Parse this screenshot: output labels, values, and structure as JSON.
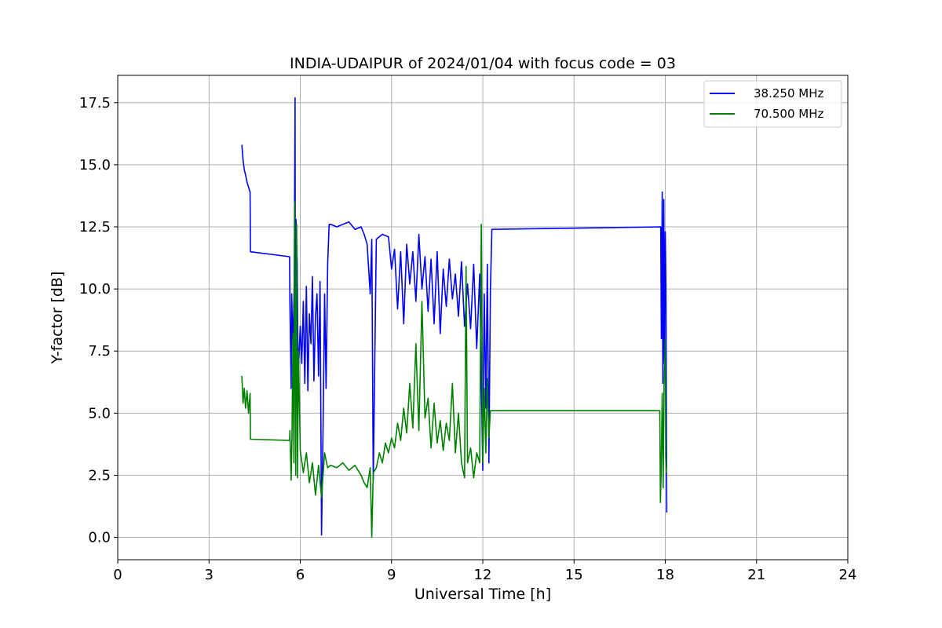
{
  "chart_data": {
    "type": "line",
    "title": "INDIA-UDAIPUR of 2024/01/04 with focus code = 03",
    "xlabel": "Universal Time [h]",
    "ylabel": "Y-factor [dB]",
    "xlim": [
      0,
      24
    ],
    "ylim": [
      -0.9,
      18.6
    ],
    "xticks": [
      0,
      3,
      6,
      9,
      12,
      15,
      18,
      21,
      24
    ],
    "xtick_labels": [
      "0",
      "3",
      "6",
      "9",
      "12",
      "15",
      "18",
      "21",
      "24"
    ],
    "yticks": [
      0,
      2.5,
      5,
      7.5,
      10,
      12.5,
      15,
      17.5
    ],
    "ytick_labels": [
      "0.0",
      "2.5",
      "5.0",
      "7.5",
      "10.0",
      "12.5",
      "15.0",
      "17.5"
    ],
    "grid": true,
    "legend_position": "top-right",
    "series": [
      {
        "name": "38.250 MHz",
        "color": "#0000ff",
        "x": [
          4.08,
          4.12,
          4.16,
          4.2,
          4.25,
          4.3,
          4.35,
          4.36,
          5.65,
          5.66,
          5.7,
          5.72,
          5.76,
          5.8,
          5.83,
          5.84,
          5.86,
          5.9,
          5.93,
          6.0,
          6.05,
          6.1,
          6.15,
          6.2,
          6.25,
          6.3,
          6.35,
          6.4,
          6.45,
          6.5,
          6.55,
          6.6,
          6.65,
          6.7,
          6.75,
          6.8,
          6.85,
          6.9,
          6.95,
          7.0,
          7.2,
          7.4,
          7.6,
          7.8,
          8.0,
          8.1,
          8.2,
          8.3,
          8.35,
          8.4,
          8.5,
          8.7,
          8.9,
          9.0,
          9.1,
          9.2,
          9.3,
          9.4,
          9.5,
          9.6,
          9.7,
          9.8,
          9.9,
          10.0,
          10.1,
          10.2,
          10.3,
          10.4,
          10.5,
          10.6,
          10.7,
          10.8,
          10.9,
          11.0,
          11.1,
          11.2,
          11.3,
          11.4,
          11.5,
          11.6,
          11.7,
          11.8,
          11.9,
          12.0,
          12.05,
          12.1,
          12.15,
          12.2,
          12.25,
          12.3,
          17.85,
          17.87,
          17.9,
          17.92,
          17.95,
          17.97,
          18.0,
          18.02,
          18.05
        ],
        "y": [
          15.8,
          15.2,
          14.8,
          14.6,
          14.3,
          14.1,
          13.9,
          11.5,
          11.3,
          9.5,
          6.0,
          9.8,
          7.5,
          10.2,
          17.7,
          7.0,
          12.8,
          11.0,
          6.5,
          8.5,
          7.0,
          9.5,
          6.2,
          10.1,
          5.9,
          9.0,
          7.8,
          10.5,
          6.3,
          8.9,
          9.8,
          6.5,
          10.3,
          0.1,
          4.5,
          9.8,
          6.0,
          11.0,
          12.6,
          12.6,
          12.5,
          12.6,
          12.7,
          12.4,
          12.5,
          12.2,
          11.8,
          9.8,
          12.0,
          2.3,
          12.0,
          12.2,
          12.1,
          10.8,
          11.6,
          9.2,
          11.5,
          8.6,
          11.8,
          10.2,
          11.5,
          9.5,
          12.2,
          10.0,
          11.3,
          9.1,
          11.2,
          8.6,
          11.5,
          8.2,
          10.8,
          9.3,
          11.2,
          9.6,
          10.6,
          8.9,
          11.1,
          8.5,
          10.2,
          8.4,
          11.0,
          7.6,
          10.6,
          2.7,
          9.8,
          5.2,
          11.0,
          3.0,
          9.9,
          12.4,
          12.5,
          8.0,
          13.9,
          6.2,
          13.6,
          7.0,
          12.3,
          10.2,
          1.0
        ]
      },
      {
        "name": "70.500 MHz",
        "color": "#008000",
        "x": [
          4.08,
          4.12,
          4.16,
          4.2,
          4.25,
          4.3,
          4.35,
          4.36,
          5.65,
          5.66,
          5.7,
          5.73,
          5.76,
          5.79,
          5.82,
          5.85,
          5.88,
          5.91,
          5.94,
          6.0,
          6.1,
          6.2,
          6.3,
          6.4,
          6.5,
          6.6,
          6.7,
          6.8,
          6.9,
          7.0,
          7.2,
          7.4,
          7.6,
          7.8,
          8.0,
          8.1,
          8.2,
          8.3,
          8.35,
          8.4,
          8.5,
          8.6,
          8.7,
          8.8,
          8.9,
          9.0,
          9.1,
          9.2,
          9.3,
          9.4,
          9.5,
          9.6,
          9.7,
          9.8,
          9.9,
          10.0,
          10.1,
          10.2,
          10.3,
          10.4,
          10.5,
          10.6,
          10.7,
          10.8,
          10.9,
          11.0,
          11.1,
          11.2,
          11.3,
          11.4,
          11.45,
          11.5,
          11.6,
          11.7,
          11.8,
          11.9,
          11.95,
          12.0,
          12.05,
          12.1,
          12.15,
          12.2,
          12.25,
          12.3,
          17.82,
          17.84,
          17.86,
          17.9,
          17.93,
          17.96,
          18.0,
          18.02,
          18.05
        ],
        "y": [
          6.5,
          5.4,
          6.0,
          5.2,
          5.9,
          5.0,
          5.8,
          3.95,
          3.9,
          4.3,
          2.3,
          4.1,
          8.2,
          3.0,
          13.5,
          2.5,
          12.6,
          2.4,
          7.5,
          3.5,
          2.6,
          3.4,
          2.2,
          3.0,
          1.7,
          2.9,
          1.6,
          3.4,
          2.8,
          2.9,
          2.8,
          3.0,
          2.7,
          2.9,
          2.5,
          2.2,
          2.0,
          2.8,
          0.0,
          2.6,
          2.8,
          3.4,
          3.0,
          3.8,
          3.4,
          4.0,
          3.6,
          4.6,
          3.9,
          5.2,
          4.2,
          6.2,
          4.4,
          7.8,
          4.3,
          9.5,
          4.8,
          5.6,
          3.6,
          5.4,
          3.8,
          4.7,
          3.5,
          4.6,
          3.9,
          6.2,
          3.4,
          5.0,
          3.0,
          2.4,
          10.9,
          3.0,
          3.6,
          2.4,
          3.4,
          3.0,
          12.6,
          3.0,
          6.0,
          3.4,
          6.4,
          4.0,
          5.1,
          5.1,
          5.1,
          1.4,
          2.4,
          5.8,
          2.0,
          6.2,
          8.0,
          3.2,
          2.6
        ]
      }
    ]
  }
}
